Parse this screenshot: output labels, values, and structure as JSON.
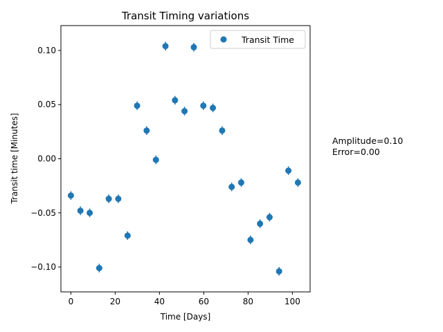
{
  "chart_data": {
    "type": "scatter",
    "title": "Transit Timing variations",
    "xlabel": "Time [Days]",
    "ylabel": "Transit time [Minutes]",
    "xlim": [
      -4.5,
      108
    ],
    "ylim": [
      -0.123,
      0.123
    ],
    "x_ticks": [
      0,
      20,
      40,
      60,
      80,
      100
    ],
    "x_tick_labels": [
      "0",
      "20",
      "40",
      "60",
      "80",
      "100"
    ],
    "y_ticks": [
      -0.1,
      -0.05,
      0.0,
      0.05,
      0.1
    ],
    "y_tick_labels": [
      "−0.10",
      "−0.05",
      "0.00",
      "0.05",
      "0.10"
    ],
    "grid": false,
    "legend_position": "top-right",
    "series": [
      {
        "name": "Transit Time",
        "color": "#1f77b4",
        "x": [
          0,
          4.3,
          8.5,
          12.8,
          17.1,
          21.4,
          25.6,
          29.9,
          34.2,
          38.4,
          42.7,
          47.0,
          51.3,
          55.5,
          59.8,
          64.1,
          68.3,
          72.6,
          76.9,
          81.1,
          85.4,
          89.7,
          94.0,
          98.2,
          102.5
        ],
        "y": [
          -0.034,
          -0.048,
          -0.05,
          -0.101,
          -0.037,
          -0.037,
          -0.071,
          0.049,
          0.026,
          -0.001,
          0.104,
          0.054,
          0.044,
          0.103,
          0.049,
          0.047,
          0.026,
          -0.026,
          -0.022,
          -0.075,
          -0.06,
          -0.054,
          -0.104,
          -0.011,
          -0.022
        ],
        "yerr": 0.004
      }
    ],
    "annotations": [
      {
        "text": "Amplitude=0.10"
      },
      {
        "text": "Error=0.00"
      }
    ]
  }
}
